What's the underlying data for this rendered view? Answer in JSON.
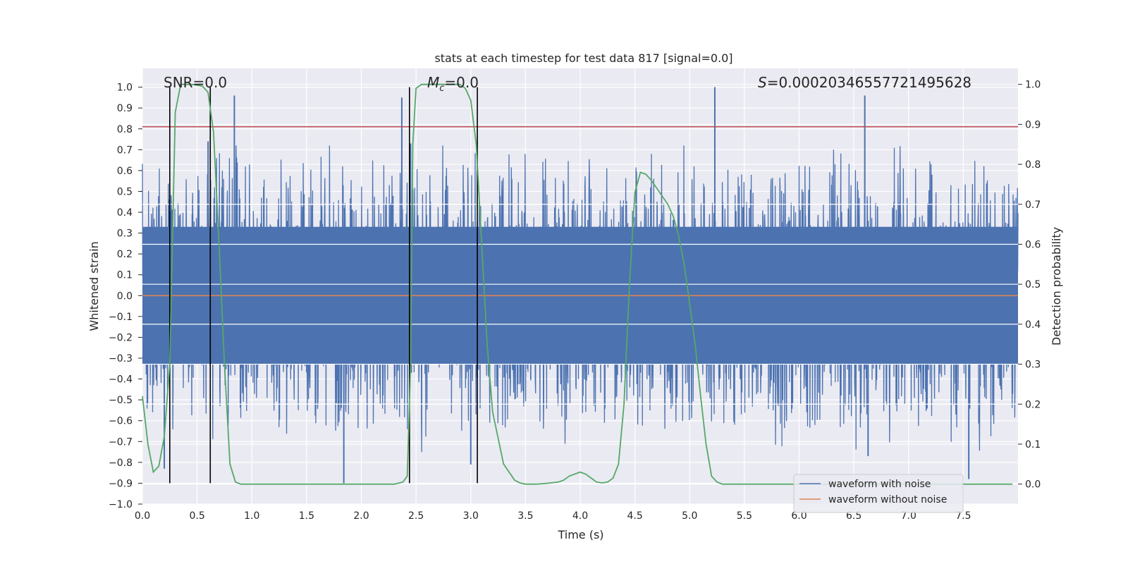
{
  "chart_data": {
    "type": "line",
    "title": "stats at each timestep for test data 817 [signal=0.0]",
    "xlabel": "Time (s)",
    "ylabel": "Whitened strain",
    "y2label": "Detection probability",
    "xlim": [
      0.0,
      8.0
    ],
    "ylim": [
      -1.0,
      1.09
    ],
    "y2lim": [
      -0.05,
      1.04
    ],
    "x_ticks": [
      "0.0",
      "0.5",
      "1.0",
      "1.5",
      "2.0",
      "2.5",
      "3.0",
      "3.5",
      "4.0",
      "4.5",
      "5.0",
      "5.5",
      "6.0",
      "6.5",
      "7.0",
      "7.5"
    ],
    "y_ticks": [
      "1.0",
      "0.9",
      "0.8",
      "0.7",
      "0.6",
      "0.5",
      "0.4",
      "0.3",
      "0.2",
      "0.1",
      "0.0",
      "−0.1",
      "−0.2",
      "−0.3",
      "−0.4",
      "−0.5",
      "−0.6",
      "−0.7",
      "−0.8",
      "−0.9",
      "−1.0"
    ],
    "y2_ticks": [
      "1.0",
      "0.9",
      "0.8",
      "0.7",
      "0.6",
      "0.5",
      "0.4",
      "0.3",
      "0.2",
      "0.1",
      "0.0"
    ],
    "grid": true,
    "annotations": {
      "snr": "SNR=0.0",
      "mc_symbol": "M",
      "mc_sub": "c",
      "mc_value": "=0.0",
      "s_symbol": "S",
      "s_value": "=0.00020346557721495628"
    },
    "threshold_line": {
      "y": 0.81,
      "color": "#c44e52"
    },
    "vertical_markers": [
      0.25,
      0.62,
      2.44,
      3.06
    ],
    "noise_envelope": {
      "dense_band": [
        -0.33,
        0.33
      ],
      "typical_peak": 0.55,
      "typical_trough": -0.65,
      "notable_peaks": [
        [
          0.84,
          0.96
        ],
        [
          2.37,
          0.95
        ],
        [
          5.23,
          1.0
        ],
        [
          6.6,
          0.96
        ],
        [
          2.45,
          0.73
        ],
        [
          0.6,
          0.74
        ]
      ],
      "notable_troughs": [
        [
          0.2,
          -0.83
        ],
        [
          1.84,
          -0.9
        ],
        [
          3.0,
          -0.81
        ],
        [
          6.63,
          -0.77
        ],
        [
          7.55,
          -0.88
        ]
      ]
    },
    "series": [
      {
        "name": "waveform with noise",
        "color": "#4c72b0",
        "axis": "left"
      },
      {
        "name": "waveform without noise",
        "color": "#dd8452",
        "axis": "left",
        "constant": 0.0
      },
      {
        "name": "detection probability",
        "color": "#55a868",
        "axis": "right",
        "x": [
          0.0,
          0.05,
          0.1,
          0.15,
          0.2,
          0.25,
          0.3,
          0.35,
          0.4,
          0.45,
          0.5,
          0.55,
          0.6,
          0.65,
          0.7,
          0.75,
          0.8,
          0.85,
          0.9,
          0.95,
          1.0,
          1.5,
          2.0,
          2.3,
          2.38,
          2.42,
          2.45,
          2.47,
          2.5,
          2.55,
          2.6,
          2.7,
          2.8,
          2.9,
          2.95,
          3.0,
          3.05,
          3.1,
          3.15,
          3.2,
          3.3,
          3.4,
          3.45,
          3.5,
          3.6,
          3.7,
          3.8,
          3.85,
          3.9,
          4.0,
          4.05,
          4.1,
          4.15,
          4.2,
          4.25,
          4.3,
          4.35,
          4.4,
          4.45,
          4.5,
          4.55,
          4.6,
          4.65,
          4.7,
          4.75,
          4.8,
          4.85,
          4.9,
          4.95,
          5.0,
          5.05,
          5.1,
          5.15,
          5.2,
          5.25,
          5.3,
          5.4,
          5.5,
          6.0,
          7.0,
          7.95
        ],
        "y": [
          0.22,
          0.1,
          0.03,
          0.045,
          0.12,
          0.3,
          0.93,
          1.0,
          1.0,
          1.0,
          0.998,
          0.995,
          0.98,
          0.88,
          0.6,
          0.3,
          0.05,
          0.005,
          0.0,
          0.0,
          0.0,
          0.0,
          0.0,
          0.0,
          0.005,
          0.02,
          0.3,
          0.85,
          0.99,
          1.0,
          1.0,
          1.0,
          1.0,
          1.0,
          0.99,
          0.96,
          0.85,
          0.6,
          0.35,
          0.18,
          0.05,
          0.01,
          0.003,
          0.0,
          0.0,
          0.002,
          0.005,
          0.01,
          0.02,
          0.03,
          0.025,
          0.015,
          0.005,
          0.003,
          0.005,
          0.015,
          0.05,
          0.2,
          0.5,
          0.73,
          0.78,
          0.775,
          0.76,
          0.74,
          0.72,
          0.7,
          0.67,
          0.62,
          0.55,
          0.45,
          0.35,
          0.22,
          0.1,
          0.02,
          0.005,
          0.0,
          0.0,
          0.0,
          0.0,
          0.0,
          0.0
        ]
      }
    ],
    "legend": {
      "location": "lower right",
      "entries": [
        "waveform with noise",
        "waveform without noise"
      ]
    }
  }
}
